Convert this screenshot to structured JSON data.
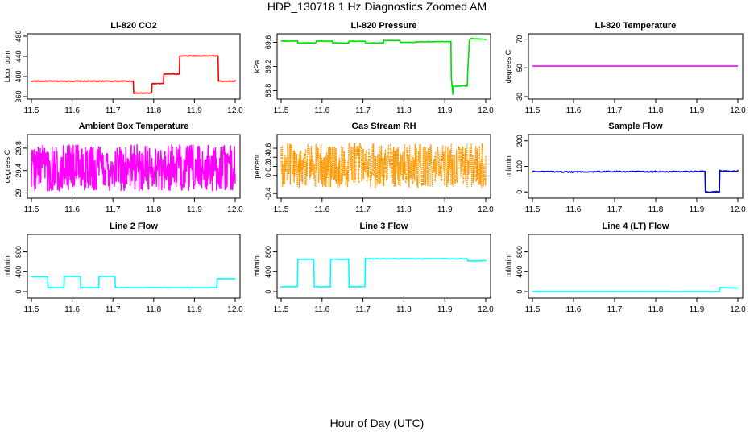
{
  "title": "HDP_130718  1 Hz Diagnostics Zoomed AM",
  "xlabel": "Hour of Day (UTC)",
  "chart_data": [
    {
      "type": "line",
      "title": "Li-820 CO2",
      "xlabel": "",
      "ylabel": "Licor ppm",
      "color": "#ff0000",
      "xlim": [
        11.5,
        12.0
      ],
      "ylim": [
        360,
        480
      ],
      "xticks": [
        "11.5",
        "11.6",
        "11.7",
        "11.8",
        "11.9",
        "12.0"
      ],
      "yticks": [
        360,
        400,
        440,
        480
      ],
      "noise": 0.6,
      "x": [
        11.5,
        11.75,
        11.751,
        11.795,
        11.796,
        11.824,
        11.825,
        11.863,
        11.864,
        11.958,
        11.959,
        12.0
      ],
      "y": [
        391,
        391,
        367,
        367,
        386,
        386,
        405,
        405,
        441,
        441,
        391,
        391
      ]
    },
    {
      "type": "line",
      "title": "Li-820 Pressure",
      "xlabel": "",
      "ylabel": "kPa",
      "color": "#00dd00",
      "xlim": [
        11.5,
        12.0
      ],
      "ylim": [
        68.7,
        69.7
      ],
      "xticks": [
        "11.5",
        "11.6",
        "11.7",
        "11.8",
        "11.9",
        "12.0"
      ],
      "yticks": [
        68.8,
        69.2,
        69.6
      ],
      "noise": 0.004,
      "x": [
        11.5,
        11.54,
        11.541,
        11.585,
        11.586,
        11.625,
        11.626,
        11.665,
        11.666,
        11.705,
        11.706,
        11.75,
        11.751,
        11.79,
        11.791,
        11.83,
        11.831,
        11.915,
        11.916,
        11.92,
        11.921,
        11.955,
        11.956,
        11.96,
        11.965,
        12.0
      ],
      "y": [
        69.62,
        69.62,
        69.59,
        69.59,
        69.62,
        69.62,
        69.59,
        69.59,
        69.62,
        69.62,
        69.59,
        69.59,
        69.63,
        69.63,
        69.6,
        69.6,
        69.61,
        69.61,
        69.0,
        68.73,
        68.87,
        68.88,
        69.1,
        69.64,
        69.66,
        69.65
      ]
    },
    {
      "type": "line",
      "title": "Li-820 Temperature",
      "xlabel": "",
      "ylabel": "degrees C",
      "color": "#ff00ff",
      "xlim": [
        11.5,
        12.0
      ],
      "ylim": [
        30,
        72
      ],
      "xticks": [
        "11.5",
        "11.6",
        "11.7",
        "11.8",
        "11.9",
        "12.0"
      ],
      "yticks": [
        30,
        50,
        70
      ],
      "noise": 0,
      "x": [
        11.5,
        12.0
      ],
      "y": [
        51.2,
        51.2
      ]
    },
    {
      "type": "line",
      "title": "Ambient Box Temperature",
      "xlabel": "",
      "ylabel": "degrees C",
      "color": "#ff00ff",
      "xlim": [
        11.5,
        12.0
      ],
      "ylim": [
        28.95,
        30.0
      ],
      "xticks": [
        "11.5",
        "11.6",
        "11.7",
        "11.8",
        "11.9",
        "12.0"
      ],
      "yticks": [
        29.0,
        29.4,
        29.8
      ],
      "noise": 0.42,
      "x": [
        11.5,
        12.0
      ],
      "y": [
        29.45,
        29.45
      ]
    },
    {
      "type": "line",
      "title": "Gas Stream RH",
      "xlabel": "",
      "ylabel": "percent",
      "color": "#ff9900",
      "xlim": [
        11.5,
        12.0
      ],
      "ylim": [
        -0.45,
        0.85
      ],
      "xticks": [
        "11.5",
        "11.6",
        "11.7",
        "11.8",
        "11.9",
        "12.0"
      ],
      "yticks": [
        -0.4,
        0.0,
        0.2,
        0.4,
        0.6
      ],
      "noise": 0.5,
      "x": [
        11.5,
        12.0
      ],
      "y": [
        0.22,
        0.22
      ]
    },
    {
      "type": "line",
      "title": "Sample Flow",
      "xlabel": "",
      "ylabel": "ml/min",
      "color": "#0000cc",
      "xlim": [
        11.5,
        12.0
      ],
      "ylim": [
        -15,
        215
      ],
      "xticks": [
        "11.5",
        "11.6",
        "11.7",
        "11.8",
        "11.9",
        "12.0"
      ],
      "yticks": [
        0,
        100,
        200
      ],
      "noise": 2,
      "x": [
        11.5,
        11.6,
        11.7,
        11.8,
        11.92,
        11.921,
        11.955,
        11.956,
        12.0
      ],
      "y": [
        80,
        78,
        80,
        79,
        80,
        0,
        0,
        82,
        81
      ]
    },
    {
      "type": "line",
      "title": "Line 2 Flow",
      "xlabel": "",
      "ylabel": "ml/min",
      "color": "#00ffff",
      "xlim": [
        11.5,
        12.0
      ],
      "ylim": [
        -80,
        1100
      ],
      "xticks": [
        "11.5",
        "11.6",
        "11.7",
        "11.8",
        "11.9",
        "12.0"
      ],
      "yticks": [
        0,
        400,
        800
      ],
      "noise": 6,
      "x": [
        11.5,
        11.54,
        11.541,
        11.58,
        11.581,
        11.62,
        11.621,
        11.665,
        11.666,
        11.705,
        11.706,
        11.955,
        11.956,
        12.0
      ],
      "y": [
        300,
        300,
        80,
        80,
        310,
        310,
        80,
        80,
        310,
        310,
        80,
        80,
        260,
        260
      ]
    },
    {
      "type": "line",
      "title": "Line 3 Flow",
      "xlabel": "",
      "ylabel": "ml/min",
      "color": "#00ffff",
      "xlim": [
        11.5,
        12.0
      ],
      "ylim": [
        -80,
        1100
      ],
      "xticks": [
        "11.5",
        "11.6",
        "11.7",
        "11.8",
        "11.9",
        "12.0"
      ],
      "yticks": [
        0,
        400,
        800
      ],
      "noise": 6,
      "x": [
        11.5,
        11.54,
        11.541,
        11.58,
        11.581,
        11.62,
        11.621,
        11.665,
        11.666,
        11.705,
        11.706,
        11.955,
        11.956,
        12.0
      ],
      "y": [
        100,
        100,
        650,
        650,
        100,
        100,
        650,
        650,
        100,
        100,
        660,
        660,
        620,
        620
      ]
    },
    {
      "type": "line",
      "title": "Line 4 (LT) Flow",
      "xlabel": "",
      "ylabel": "ml/min",
      "color": "#00ffff",
      "xlim": [
        11.5,
        12.0
      ],
      "ylim": [
        -80,
        1100
      ],
      "xticks": [
        "11.5",
        "11.6",
        "11.7",
        "11.8",
        "11.9",
        "12.0"
      ],
      "yticks": [
        0,
        400,
        800
      ],
      "noise": 3,
      "x": [
        11.5,
        11.955,
        11.956,
        12.0
      ],
      "y": [
        0,
        0,
        80,
        70
      ]
    }
  ]
}
